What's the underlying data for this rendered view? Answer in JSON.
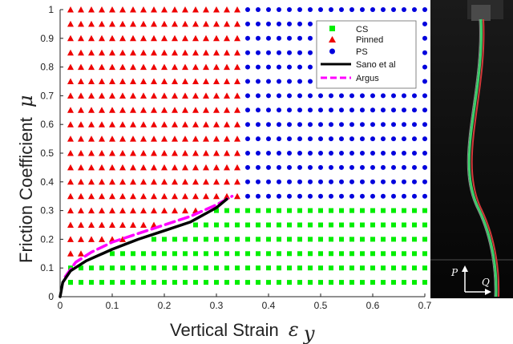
{
  "chart_data": {
    "type": "scatter",
    "xlabel": "Vertical Strain",
    "xlabel_symbol": "ε",
    "xlabel_subscript": "y",
    "ylabel": "Friction Coefficient",
    "ylabel_symbol": "μ",
    "xlim": [
      0,
      0.7
    ],
    "ylim": [
      0,
      1
    ],
    "xticks": [
      "0",
      "0.1",
      "0.2",
      "0.3",
      "0.4",
      "0.5",
      "0.6",
      "0.7"
    ],
    "yticks": [
      "0",
      "0.1",
      "0.2",
      "0.3",
      "0.4",
      "0.5",
      "0.6",
      "0.7",
      "0.8",
      "0.9",
      "1"
    ],
    "legend_position": "top-right",
    "grid": false,
    "grid_spacing": {
      "x": 0.02,
      "y": 0.05
    },
    "series": [
      {
        "name": "CS",
        "marker": "square",
        "color": "#00ee00",
        "region": "mu <= 0.3, 0.02 <= x <= 0.7 (below boundary)"
      },
      {
        "name": "Pinned",
        "marker": "triangle",
        "color": "#ee0000",
        "region": "x <= 0.34, above boundary"
      },
      {
        "name": "PS",
        "marker": "circle",
        "color": "#0000dd",
        "region": "x >= 0.36, mu >= 0.35"
      },
      {
        "name": "Sano et al",
        "type": "line",
        "color": "#000000",
        "style": "solid",
        "x": [
          0,
          0.005,
          0.02,
          0.05,
          0.1,
          0.15,
          0.2,
          0.25,
          0.3,
          0.32
        ],
        "y": [
          0,
          0.05,
          0.09,
          0.125,
          0.165,
          0.2,
          0.23,
          0.26,
          0.31,
          0.34
        ]
      },
      {
        "name": "Argus",
        "type": "line",
        "color": "#ff00ff",
        "style": "dashed",
        "x": [
          0.01,
          0.03,
          0.06,
          0.1,
          0.15,
          0.2,
          0.25,
          0.3,
          0.33
        ],
        "y": [
          0.07,
          0.12,
          0.155,
          0.19,
          0.22,
          0.25,
          0.28,
          0.32,
          0.35
        ]
      }
    ],
    "annotations": {
      "photo_vectors": [
        "P",
        "Q"
      ]
    }
  }
}
